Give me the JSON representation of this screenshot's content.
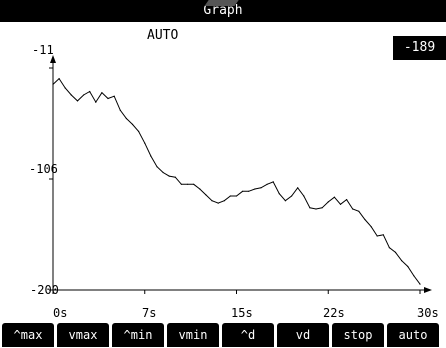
{
  "window": {
    "title": "Graph"
  },
  "mode": {
    "label": "AUTO"
  },
  "readout": {
    "value": "-189"
  },
  "axes": {
    "y_ticks": [
      "-11",
      "-106",
      "-200"
    ],
    "x_ticks": [
      "0s",
      "7s",
      "15s",
      "22s",
      "30s"
    ]
  },
  "softkeys": [
    "^max",
    "vmax",
    "^min",
    "vmin",
    "^d",
    "vd",
    "stop",
    "auto"
  ],
  "chart_data": {
    "type": "line",
    "x_unit": "s",
    "xlim": [
      0,
      30
    ],
    "ylim": [
      -200,
      -11
    ],
    "x": [
      0,
      0.5,
      1,
      1.5,
      2,
      2.5,
      3,
      3.5,
      4,
      4.5,
      5,
      5.5,
      6,
      6.5,
      7,
      7.5,
      8,
      8.5,
      9,
      9.5,
      10,
      10.5,
      11,
      11.5,
      12,
      12.5,
      13,
      13.5,
      14,
      14.5,
      15,
      15.5,
      16,
      16.5,
      17,
      17.5,
      18,
      18.5,
      19,
      19.5,
      20,
      20.5,
      21,
      21.5,
      22,
      22.5,
      23,
      23.5,
      24,
      24.5,
      25,
      25.5,
      26,
      26.5,
      27,
      27.5,
      28,
      28.5,
      29,
      29.5,
      30
    ],
    "y": [
      -25,
      -20,
      -28,
      -34,
      -39,
      -34,
      -31,
      -40,
      -32,
      -37,
      -35,
      -47,
      -54,
      -59,
      -65,
      -75,
      -86,
      -95,
      -100,
      -103,
      -104,
      -110,
      -110,
      -110,
      -114,
      -119,
      -124,
      -126,
      -124,
      -120,
      -120,
      -116,
      -116,
      -114,
      -113,
      -110,
      -108,
      -118,
      -124,
      -120,
      -113,
      -120,
      -130,
      -131,
      -130,
      -125,
      -121,
      -127,
      -123,
      -131,
      -133,
      -140,
      -146,
      -154,
      -153,
      -164,
      -168,
      -175,
      -180,
      -188,
      -195
    ]
  }
}
